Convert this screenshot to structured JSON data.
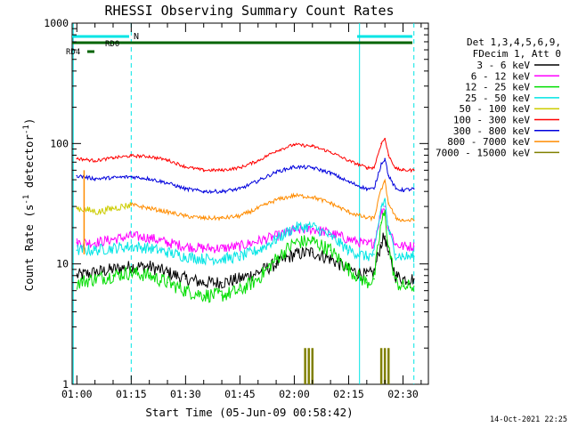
{
  "title": "RHESSI Observing Summary Count Rates",
  "xlabel": "Start Time (05-Jun-09 00:58:42)",
  "ylabel_main": "Count Rate (s",
  "ylabel_sup1": "-1",
  "ylabel_mid": " detector",
  "ylabel_sup2": "-1",
  "ylabel_end": ")",
  "footer_date": "14-Oct-2021 22:25",
  "legend": {
    "header1": "Det 1,3,4,5,6,9,",
    "header2": "FDecim 1, Att 0"
  },
  "annotations": {
    "night_label": "N",
    "saa_label": "RD0",
    "rd4_label": "RD4"
  },
  "chart_data": {
    "type": "line",
    "title": "RHESSI Observing Summary Count Rates",
    "xlabel": "Start Time (05-Jun-09 00:58:42)",
    "ylabel": "Count Rate (s-1 detector-1)",
    "y_scale": "log",
    "ylim": [
      1,
      1000
    ],
    "xlim": [
      "00:58:42",
      "02:37:00"
    ],
    "x_ticks": [
      "01:00",
      "01:15",
      "01:30",
      "01:45",
      "02:00",
      "02:15",
      "02:30"
    ],
    "y_ticks": [
      "1",
      "10",
      "100",
      "1000"
    ],
    "grid": false,
    "legend_position": "right",
    "dashed_markers": [
      "01:15",
      "02:33"
    ],
    "solid_markers": [
      "00:59",
      "02:18"
    ],
    "series": [
      {
        "name": "3 - 6 keV",
        "color": "#000000",
        "x": [
          "01:00",
          "01:05",
          "01:10",
          "01:15",
          "01:20",
          "01:25",
          "01:30",
          "01:35",
          "01:40",
          "01:45",
          "01:50",
          "01:55",
          "02:00",
          "02:05",
          "02:10",
          "02:15",
          "02:20",
          "02:22",
          "02:24",
          "02:25",
          "02:26",
          "02:28",
          "02:30",
          "02:33"
        ],
        "values": [
          8,
          8.5,
          9,
          9.5,
          9.5,
          8.5,
          7.5,
          7,
          7,
          7.5,
          8.5,
          10,
          12,
          12.5,
          11,
          9,
          8,
          8.5,
          15,
          17,
          12,
          8,
          7.5,
          7.5
        ]
      },
      {
        "name": "6 - 12 keV",
        "color": "#ff00ff",
        "x": [
          "01:00",
          "01:05",
          "01:10",
          "01:15",
          "01:20",
          "01:25",
          "01:30",
          "01:35",
          "01:40",
          "01:45",
          "01:50",
          "01:55",
          "02:00",
          "02:05",
          "02:10",
          "02:15",
          "02:20",
          "02:22",
          "02:24",
          "02:25",
          "02:26",
          "02:28",
          "02:30",
          "02:33"
        ],
        "values": [
          15,
          15,
          16,
          17,
          16.5,
          15,
          14,
          13.5,
          13.5,
          14,
          15.5,
          17,
          19,
          19.5,
          18,
          16,
          14.5,
          15,
          27,
          30,
          20,
          14.5,
          14,
          14
        ]
      },
      {
        "name": "12 - 25 keV",
        "color": "#00dd00",
        "x": [
          "01:00",
          "01:05",
          "01:10",
          "01:15",
          "01:20",
          "01:25",
          "01:30",
          "01:35",
          "01:40",
          "01:45",
          "01:50",
          "01:55",
          "02:00",
          "02:05",
          "02:10",
          "02:15",
          "02:20",
          "02:22",
          "02:24",
          "02:25",
          "02:26",
          "02:28",
          "02:30",
          "02:33"
        ],
        "values": [
          7,
          7.5,
          8,
          8.5,
          8,
          7,
          6,
          5.5,
          5.5,
          6,
          7.5,
          11,
          15,
          15.5,
          13,
          9,
          7,
          7.5,
          22,
          26,
          14,
          7,
          6.5,
          6.5
        ]
      },
      {
        "name": "25 - 50 keV",
        "color": "#00e5e5",
        "x": [
          "01:00",
          "01:05",
          "01:10",
          "01:15",
          "01:20",
          "01:25",
          "01:30",
          "01:35",
          "01:40",
          "01:45",
          "01:50",
          "01:55",
          "02:00",
          "02:05",
          "02:10",
          "02:15",
          "02:20",
          "02:22",
          "02:24",
          "02:25",
          "02:26",
          "02:28",
          "02:30",
          "02:33"
        ],
        "values": [
          13,
          13,
          13.5,
          14,
          13.5,
          12.5,
          11.5,
          11,
          11,
          11.5,
          13,
          16,
          20,
          20.5,
          17,
          13,
          11.5,
          12,
          30,
          34,
          19,
          12,
          11.5,
          11.5
        ]
      },
      {
        "name": "50 - 100 keV",
        "color": "#cccc00",
        "x": [
          "01:00",
          "01:03",
          "01:06",
          "01:10",
          "01:15"
        ],
        "values": [
          29,
          28,
          27,
          29,
          31
        ]
      },
      {
        "name": "100 - 300 keV",
        "color": "#ff0000",
        "x": [
          "01:00",
          "01:05",
          "01:10",
          "01:15",
          "01:20",
          "01:25",
          "01:30",
          "01:35",
          "01:40",
          "01:45",
          "01:50",
          "01:55",
          "02:00",
          "02:05",
          "02:10",
          "02:15",
          "02:20",
          "02:22",
          "02:24",
          "02:25",
          "02:26",
          "02:28",
          "02:30",
          "02:33"
        ],
        "values": [
          75,
          72,
          76,
          79,
          78,
          73,
          64,
          60,
          60,
          63,
          72,
          87,
          98,
          95,
          85,
          72,
          63,
          63,
          100,
          110,
          80,
          62,
          60,
          60
        ]
      },
      {
        "name": "300 - 800 keV",
        "color": "#0000dd",
        "x": [
          "01:00",
          "01:05",
          "01:10",
          "01:15",
          "01:20",
          "01:25",
          "01:30",
          "01:35",
          "01:40",
          "01:45",
          "01:50",
          "01:55",
          "02:00",
          "02:05",
          "02:10",
          "02:15",
          "02:20",
          "02:22",
          "02:24",
          "02:25",
          "02:26",
          "02:28",
          "02:30",
          "02:33"
        ],
        "values": [
          54,
          51,
          52,
          53,
          51,
          47,
          42,
          40,
          40,
          42,
          49,
          58,
          64,
          63,
          57,
          48,
          42,
          42,
          68,
          75,
          54,
          42,
          41,
          42
        ]
      },
      {
        "name": "800 - 7000 keV",
        "color": "#ff8c00",
        "x": [
          "01:15",
          "01:20",
          "01:25",
          "01:30",
          "01:35",
          "01:40",
          "01:45",
          "01:50",
          "01:55",
          "02:00",
          "02:05",
          "02:10",
          "02:15",
          "02:20",
          "02:22",
          "02:24",
          "02:25",
          "02:26",
          "02:28",
          "02:30",
          "02:33"
        ],
        "values": [
          31,
          29,
          27,
          25,
          24,
          24,
          25,
          29,
          34,
          37,
          36,
          32,
          27,
          24,
          24,
          42,
          48,
          32,
          24,
          23,
          23
        ]
      },
      {
        "name": "7000 - 15000 keV",
        "color": "#808000",
        "x": [
          "02:03",
          "02:04",
          "02:05",
          "02:24",
          "02:25",
          "02:26"
        ],
        "values": [
          2,
          2,
          2,
          2,
          2,
          2
        ]
      }
    ]
  }
}
